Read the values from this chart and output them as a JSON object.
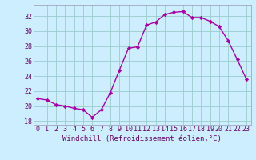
{
  "x": [
    0,
    1,
    2,
    3,
    4,
    5,
    6,
    7,
    8,
    9,
    10,
    11,
    12,
    13,
    14,
    15,
    16,
    17,
    18,
    19,
    20,
    21,
    22,
    23
  ],
  "y": [
    21.0,
    20.8,
    20.2,
    20.0,
    19.7,
    19.5,
    18.5,
    19.5,
    21.8,
    24.8,
    27.7,
    27.9,
    30.8,
    31.2,
    32.2,
    32.5,
    32.6,
    31.8,
    31.8,
    31.3,
    30.6,
    28.7,
    26.2,
    23.6
  ],
  "line_color": "#aa00aa",
  "marker": "D",
  "marker_size": 2.2,
  "bg_color": "#cceeff",
  "grid_color": "#99cccc",
  "xlabel": "Windchill (Refroidissement éolien,°C)",
  "xlabel_fontsize": 6.5,
  "tick_fontsize": 6.0,
  "ylim": [
    17.5,
    33.5
  ],
  "xlim": [
    -0.5,
    23.5
  ],
  "yticks": [
    18,
    20,
    22,
    24,
    26,
    28,
    30,
    32
  ],
  "xticks": [
    0,
    1,
    2,
    3,
    4,
    5,
    6,
    7,
    8,
    9,
    10,
    11,
    12,
    13,
    14,
    15,
    16,
    17,
    18,
    19,
    20,
    21,
    22,
    23
  ],
  "spine_color": "#9999bb",
  "linewidth": 1.0
}
